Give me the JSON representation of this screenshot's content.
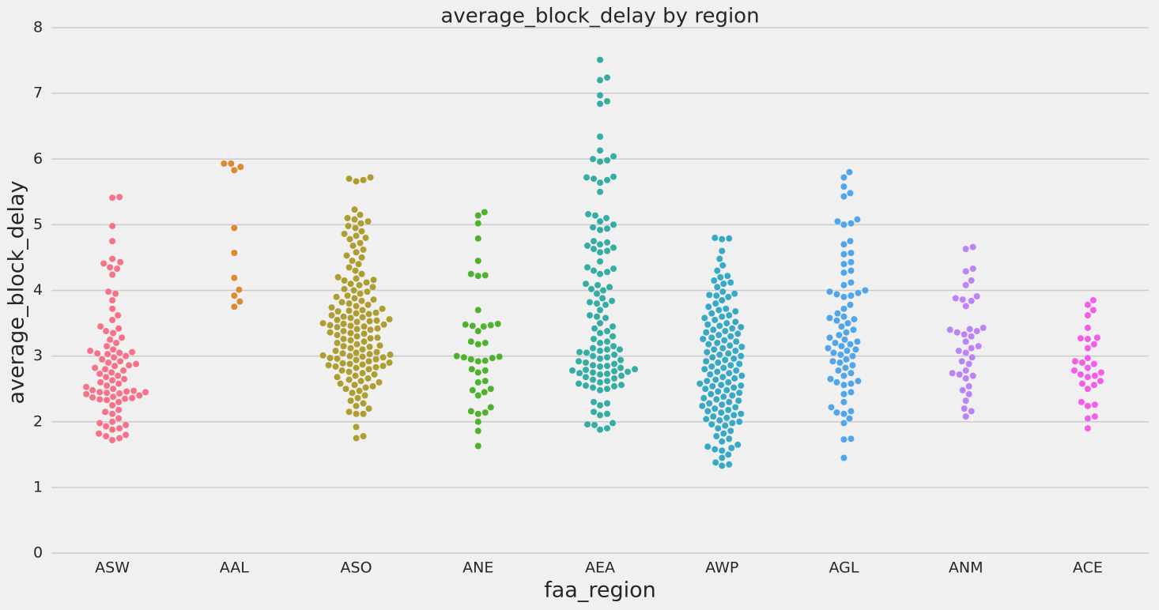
{
  "chart_data": {
    "type": "swarm",
    "title": "average_block_delay by region",
    "x_label": "faa_region",
    "y_label": "average_block_delay",
    "categories": [
      "ASW",
      "AAL",
      "ASO",
      "ANE",
      "AEA",
      "AWP",
      "AGL",
      "ANM",
      "ACE"
    ],
    "colors": [
      "#f77189",
      "#dc8932",
      "#ae9d31",
      "#50b131",
      "#36ada4",
      "#38a9c5",
      "#52a5e9",
      "#bb83f4",
      "#f45deb"
    ],
    "values": [
      [
        5.42,
        5.41,
        4.98,
        4.75,
        4.48,
        4.43,
        4.41,
        4.35,
        4.33,
        4.24,
        3.98,
        3.95,
        3.85,
        3.72,
        3.62,
        3.55,
        3.45,
        3.42,
        3.38,
        3.35,
        3.28,
        3.25,
        3.2,
        3.15,
        3.1,
        3.08,
        3.06,
        3.05,
        3.04,
        3.03,
        3.0,
        2.98,
        2.95,
        2.92,
        2.9,
        2.88,
        2.86,
        2.85,
        2.82,
        2.8,
        2.78,
        2.75,
        2.73,
        2.7,
        2.68,
        2.65,
        2.63,
        2.6,
        2.58,
        2.55,
        2.53,
        2.5,
        2.48,
        2.47,
        2.46,
        2.45,
        2.45,
        2.44,
        2.43,
        2.42,
        2.4,
        2.38,
        2.37,
        2.36,
        2.35,
        2.34,
        2.33,
        2.3,
        2.25,
        2.18,
        2.15,
        2.12,
        2.05,
        2.0,
        1.98,
        1.95,
        1.93,
        1.9,
        1.88,
        1.82,
        1.8,
        1.78,
        1.75,
        1.72
      ],
      [
        5.93,
        5.93,
        5.88,
        5.83,
        4.95,
        4.57,
        4.19,
        4.01,
        3.92,
        3.83,
        3.75
      ],
      [
        5.72,
        5.68,
        5.66,
        5.7,
        5.23,
        5.15,
        5.1,
        5.08,
        5.05,
        5.02,
        4.98,
        4.95,
        4.9,
        4.86,
        4.83,
        4.8,
        4.78,
        4.72,
        4.68,
        4.62,
        4.58,
        4.53,
        4.5,
        4.45,
        4.4,
        4.35,
        4.3,
        4.25,
        4.2,
        4.18,
        4.16,
        4.15,
        4.12,
        4.1,
        4.08,
        4.05,
        4.02,
        4.0,
        3.98,
        3.95,
        3.92,
        3.9,
        3.88,
        3.86,
        3.84,
        3.82,
        3.8,
        3.78,
        3.76,
        3.74,
        3.72,
        3.7,
        3.69,
        3.68,
        3.66,
        3.65,
        3.64,
        3.62,
        3.6,
        3.59,
        3.58,
        3.56,
        3.55,
        3.54,
        3.53,
        3.52,
        3.5,
        3.49,
        3.48,
        3.47,
        3.46,
        3.45,
        3.44,
        3.42,
        3.41,
        3.4,
        3.38,
        3.36,
        3.35,
        3.34,
        3.32,
        3.3,
        3.28,
        3.27,
        3.26,
        3.24,
        3.22,
        3.2,
        3.18,
        3.16,
        3.15,
        3.14,
        3.12,
        3.1,
        3.08,
        3.06,
        3.05,
        3.04,
        3.03,
        3.02,
        3.01,
        3.0,
        2.99,
        2.98,
        2.97,
        2.96,
        2.95,
        2.94,
        2.92,
        2.9,
        2.89,
        2.88,
        2.87,
        2.86,
        2.85,
        2.84,
        2.83,
        2.82,
        2.8,
        2.78,
        2.76,
        2.74,
        2.72,
        2.7,
        2.68,
        2.66,
        2.64,
        2.62,
        2.6,
        2.58,
        2.56,
        2.54,
        2.52,
        2.5,
        2.47,
        2.44,
        2.4,
        2.36,
        2.32,
        2.28,
        2.24,
        2.2,
        2.15,
        2.12,
        2.12,
        1.92,
        1.78,
        1.75
      ],
      [
        5.19,
        5.14,
        5.02,
        4.79,
        4.45,
        4.25,
        4.23,
        4.22,
        3.7,
        3.49,
        3.48,
        3.47,
        3.46,
        3.45,
        3.38,
        3.22,
        3.2,
        3.18,
        3.0,
        2.99,
        2.98,
        2.97,
        2.95,
        2.93,
        2.92,
        2.8,
        2.78,
        2.75,
        2.62,
        2.6,
        2.5,
        2.48,
        2.45,
        2.4,
        2.22,
        2.16,
        2.14,
        2.12,
        2.0,
        1.86,
        1.63
      ],
      [
        7.51,
        7.24,
        7.2,
        6.97,
        6.88,
        6.84,
        6.34,
        6.13,
        6.04,
        6.0,
        5.98,
        5.96,
        5.73,
        5.72,
        5.7,
        5.68,
        5.64,
        5.5,
        5.16,
        5.14,
        5.1,
        5.05,
        5.0,
        4.96,
        4.94,
        4.92,
        4.75,
        4.73,
        4.7,
        4.68,
        4.65,
        4.63,
        4.6,
        4.58,
        4.44,
        4.35,
        4.33,
        4.3,
        4.28,
        4.25,
        4.1,
        4.08,
        4.05,
        4.02,
        4.0,
        3.95,
        3.88,
        3.84,
        3.82,
        3.8,
        3.78,
        3.7,
        3.62,
        3.6,
        3.58,
        3.5,
        3.45,
        3.42,
        3.38,
        3.35,
        3.3,
        3.26,
        3.22,
        3.2,
        3.15,
        3.12,
        3.1,
        3.1,
        3.08,
        3.06,
        3.05,
        3.02,
        3.0,
        2.98,
        2.96,
        2.94,
        2.92,
        2.9,
        2.88,
        2.86,
        2.85,
        2.84,
        2.82,
        2.8,
        2.79,
        2.78,
        2.77,
        2.76,
        2.75,
        2.74,
        2.73,
        2.72,
        2.7,
        2.68,
        2.66,
        2.64,
        2.62,
        2.6,
        2.58,
        2.56,
        2.55,
        2.54,
        2.52,
        2.5,
        2.48,
        2.3,
        2.28,
        2.25,
        2.15,
        2.12,
        2.1,
        1.98,
        1.96,
        1.95,
        1.9,
        1.88
      ],
      [
        4.8,
        4.79,
        4.78,
        4.6,
        4.48,
        4.38,
        4.3,
        4.22,
        4.2,
        4.15,
        4.12,
        4.1,
        4.05,
        3.98,
        3.95,
        3.93,
        3.92,
        3.9,
        3.85,
        3.8,
        3.75,
        3.72,
        3.7,
        3.68,
        3.65,
        3.62,
        3.6,
        3.58,
        3.55,
        3.52,
        3.5,
        3.48,
        3.46,
        3.44,
        3.42,
        3.4,
        3.38,
        3.36,
        3.34,
        3.32,
        3.3,
        3.28,
        3.26,
        3.24,
        3.22,
        3.2,
        3.18,
        3.16,
        3.14,
        3.12,
        3.1,
        3.08,
        3.06,
        3.04,
        3.02,
        3.0,
        2.98,
        2.96,
        2.94,
        2.92,
        2.9,
        2.88,
        2.86,
        2.84,
        2.82,
        2.8,
        2.78,
        2.76,
        2.74,
        2.72,
        2.7,
        2.68,
        2.66,
        2.64,
        2.62,
        2.6,
        2.58,
        2.56,
        2.55,
        2.54,
        2.52,
        2.5,
        2.48,
        2.46,
        2.44,
        2.42,
        2.4,
        2.38,
        2.36,
        2.34,
        2.32,
        2.3,
        2.28,
        2.26,
        2.24,
        2.22,
        2.2,
        2.18,
        2.16,
        2.14,
        2.12,
        2.1,
        2.08,
        2.06,
        2.04,
        2.02,
        2.0,
        1.98,
        1.96,
        1.94,
        1.9,
        1.86,
        1.82,
        1.78,
        1.74,
        1.7,
        1.65,
        1.62,
        1.6,
        1.58,
        1.56,
        1.5,
        1.45,
        1.38,
        1.35,
        1.33
      ],
      [
        5.8,
        5.72,
        5.58,
        5.48,
        5.43,
        5.08,
        5.05,
        5.02,
        5.0,
        4.75,
        4.7,
        4.57,
        4.55,
        4.43,
        4.4,
        4.3,
        4.27,
        4.12,
        4.08,
        4.0,
        3.98,
        3.96,
        3.94,
        3.92,
        3.9,
        3.78,
        3.72,
        3.65,
        3.6,
        3.58,
        3.56,
        3.54,
        3.5,
        3.45,
        3.4,
        3.36,
        3.32,
        3.28,
        3.25,
        3.22,
        3.2,
        3.18,
        3.15,
        3.12,
        3.1,
        3.08,
        3.05,
        3.02,
        3.0,
        2.95,
        2.92,
        2.9,
        2.86,
        2.82,
        2.78,
        2.74,
        2.7,
        2.65,
        2.62,
        2.6,
        2.58,
        2.56,
        2.45,
        2.42,
        2.3,
        2.22,
        2.16,
        2.14,
        2.12,
        2.05,
        1.98,
        1.74,
        1.73,
        1.45
      ],
      [
        4.66,
        4.63,
        4.33,
        4.29,
        4.15,
        4.08,
        3.91,
        3.88,
        3.86,
        3.84,
        3.76,
        3.43,
        3.41,
        3.4,
        3.38,
        3.36,
        3.33,
        3.3,
        3.22,
        3.15,
        3.12,
        3.08,
        3.05,
        2.98,
        2.92,
        2.88,
        2.78,
        2.74,
        2.72,
        2.7,
        2.66,
        2.54,
        2.48,
        2.42,
        2.32,
        2.2,
        2.16,
        2.08
      ],
      [
        3.85,
        3.78,
        3.7,
        3.62,
        3.43,
        3.28,
        3.27,
        3.26,
        3.18,
        3.12,
        2.97,
        2.92,
        2.9,
        2.88,
        2.82,
        2.78,
        2.75,
        2.72,
        2.7,
        2.68,
        2.62,
        2.58,
        2.56,
        2.5,
        2.3,
        2.26,
        2.24,
        2.08,
        2.05,
        1.9
      ]
    ],
    "ylim": [
      0,
      8
    ],
    "yticks": [
      0,
      1,
      2,
      3,
      4,
      5,
      6,
      7,
      8
    ],
    "grid": true
  }
}
